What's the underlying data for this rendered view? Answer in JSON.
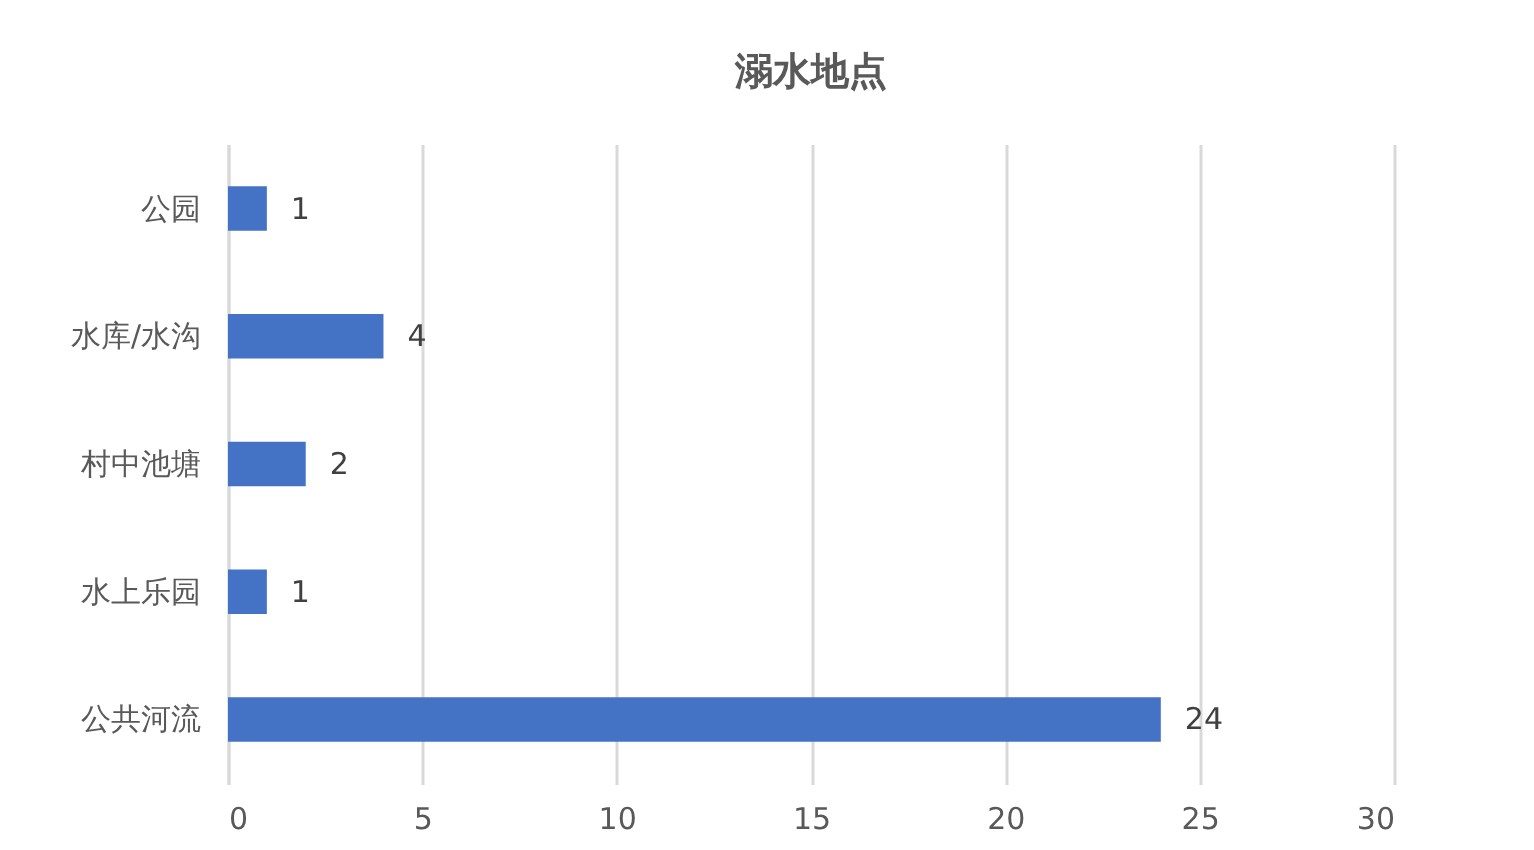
{
  "chart_data": {
    "type": "bar",
    "orientation": "horizontal",
    "title": "溺水地点",
    "categories": [
      "公园",
      "水库/水沟",
      "村中池塘",
      "水上乐园",
      "公共河流"
    ],
    "values": [
      1,
      4,
      2,
      1,
      24
    ],
    "color": "#4472c4",
    "xlim": [
      0,
      30
    ],
    "xticks": [
      0,
      5,
      10,
      15,
      20,
      25,
      30
    ],
    "grid": "x",
    "data_labels": true
  }
}
